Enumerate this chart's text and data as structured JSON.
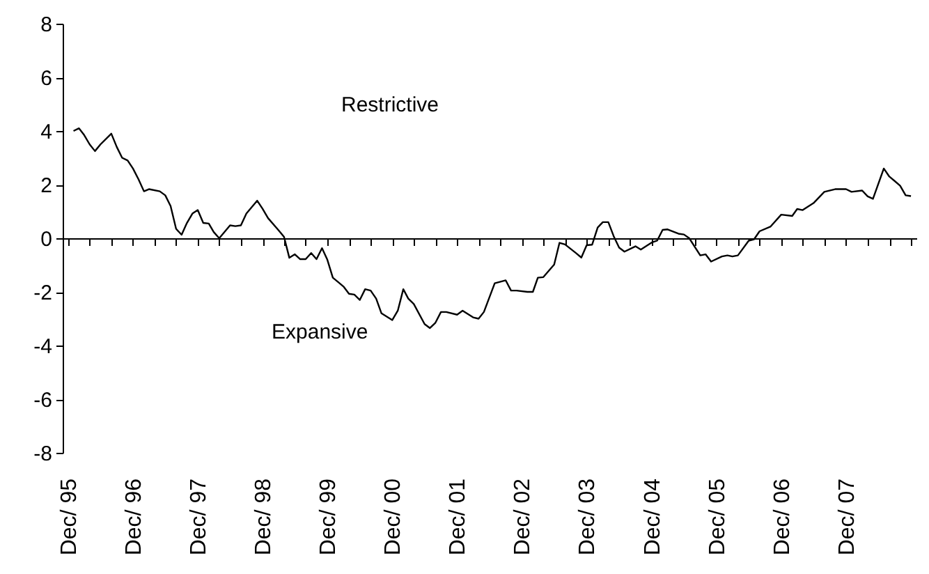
{
  "chart_data": {
    "type": "line",
    "annotations": [
      "Restrictive",
      "Expansive"
    ],
    "x": [
      "1996-01",
      "1996-02",
      "1996-03",
      "1996-04",
      "1996-05",
      "1996-06",
      "1996-08",
      "1996-09",
      "1996-10",
      "1996-11",
      "1996-12",
      "1997-01",
      "1997-02",
      "1997-03",
      "1997-05",
      "1997-06",
      "1997-07",
      "1997-08",
      "1997-09",
      "1997-10",
      "1997-11",
      "1997-12",
      "1998-01",
      "1998-02",
      "1998-03",
      "1998-04",
      "1998-06",
      "1998-07",
      "1998-08",
      "1998-09",
      "1998-11",
      "1998-12",
      "1999-01",
      "1999-03",
      "1999-04",
      "1999-05",
      "1999-06",
      "1999-07",
      "1999-08",
      "1999-09",
      "1999-10",
      "1999-11",
      "1999-12",
      "2000-01",
      "2000-02",
      "2000-03",
      "2000-04",
      "2000-05",
      "2000-06",
      "2000-07",
      "2000-08",
      "2000-09",
      "2000-10",
      "2000-12",
      "2001-01",
      "2001-02",
      "2001-03",
      "2001-04",
      "2001-06",
      "2001-07",
      "2001-08",
      "2001-09",
      "2001-10",
      "2001-12",
      "2002-01",
      "2002-03",
      "2002-04",
      "2002-05",
      "2002-07",
      "2002-09",
      "2002-10",
      "2002-11",
      "2003-01",
      "2003-02",
      "2003-03",
      "2003-04",
      "2003-06",
      "2003-07",
      "2003-08",
      "2003-10",
      "2003-11",
      "2003-12",
      "2004-01",
      "2004-02",
      "2004-03",
      "2004-04",
      "2004-05",
      "2004-06",
      "2004-07",
      "2004-09",
      "2004-10",
      "2004-12",
      "2005-01",
      "2005-02",
      "2005-03",
      "2005-05",
      "2005-06",
      "2005-07",
      "2005-09",
      "2005-10",
      "2005-11",
      "2006-01",
      "2006-02",
      "2006-03",
      "2006-04",
      "2006-06",
      "2006-07",
      "2006-08",
      "2006-10",
      "2006-12",
      "2007-02",
      "2007-03",
      "2007-04",
      "2007-06",
      "2007-08",
      "2007-10",
      "2007-12",
      "2008-01",
      "2008-03",
      "2008-04",
      "2008-05",
      "2008-07",
      "2008-08",
      "2008-09",
      "2008-10",
      "2008-11",
      "2008-12"
    ],
    "series": [
      {
        "color": "#000000",
        "values": [
          4.0,
          4.1,
          3.85,
          3.5,
          3.25,
          3.5,
          3.9,
          3.4,
          3.0,
          2.9,
          2.6,
          2.2,
          1.75,
          1.83,
          1.75,
          1.6,
          1.2,
          0.35,
          0.13,
          0.57,
          0.92,
          1.05,
          0.57,
          0.55,
          0.23,
          0.0,
          0.48,
          0.45,
          0.48,
          0.92,
          1.4,
          1.1,
          0.75,
          0.3,
          0.05,
          -0.73,
          -0.6,
          -0.78,
          -0.78,
          -0.55,
          -0.78,
          -0.37,
          -0.8,
          -1.47,
          -1.64,
          -1.8,
          -2.07,
          -2.1,
          -2.3,
          -1.9,
          -1.95,
          -2.25,
          -2.8,
          -3.05,
          -2.7,
          -1.9,
          -2.25,
          -2.45,
          -3.2,
          -3.35,
          -3.15,
          -2.75,
          -2.75,
          -2.85,
          -2.7,
          -2.95,
          -3.0,
          -2.75,
          -1.68,
          -1.57,
          -1.95,
          -1.95,
          -2.0,
          -2.0,
          -1.47,
          -1.45,
          -0.98,
          -0.17,
          -0.23,
          -0.55,
          -0.72,
          -0.26,
          -0.24,
          0.4,
          0.6,
          0.6,
          0.08,
          -0.35,
          -0.5,
          -0.3,
          -0.42,
          -0.16,
          -0.09,
          0.31,
          0.33,
          0.17,
          0.14,
          0.0,
          -0.64,
          -0.6,
          -0.87,
          -0.68,
          -0.64,
          -0.68,
          -0.64,
          -0.09,
          -0.04,
          0.26,
          0.43,
          0.88,
          0.83,
          1.09,
          1.05,
          1.31,
          1.73,
          1.83,
          1.83,
          1.73,
          1.78,
          1.56,
          1.47,
          2.6,
          2.3,
          2.13,
          1.96,
          1.6,
          1.57
        ]
      }
    ],
    "xlim": [
      "1995-11",
      "2009-01"
    ],
    "xticks": [
      {
        "value": "1995-12",
        "label": "Dec/ 95"
      },
      {
        "value": "1996-04",
        "label": null
      },
      {
        "value": "1996-08",
        "label": null
      },
      {
        "value": "1996-12",
        "label": "Dec/ 96"
      },
      {
        "value": "1997-04",
        "label": null
      },
      {
        "value": "1997-08",
        "label": null
      },
      {
        "value": "1997-12",
        "label": "Dec/ 97"
      },
      {
        "value": "1998-04",
        "label": null
      },
      {
        "value": "1998-08",
        "label": null
      },
      {
        "value": "1998-12",
        "label": "Dec/ 98"
      },
      {
        "value": "1999-04",
        "label": null
      },
      {
        "value": "1999-08",
        "label": null
      },
      {
        "value": "1999-12",
        "label": "Dec/ 99"
      },
      {
        "value": "2000-04",
        "label": null
      },
      {
        "value": "2000-08",
        "label": null
      },
      {
        "value": "2000-12",
        "label": "Dec/ 00"
      },
      {
        "value": "2001-04",
        "label": null
      },
      {
        "value": "2001-08",
        "label": null
      },
      {
        "value": "2001-12",
        "label": "Dec/ 01"
      },
      {
        "value": "2002-04",
        "label": null
      },
      {
        "value": "2002-08",
        "label": null
      },
      {
        "value": "2002-12",
        "label": "Dec/ 02"
      },
      {
        "value": "2003-04",
        "label": null
      },
      {
        "value": "2003-08",
        "label": null
      },
      {
        "value": "2003-12",
        "label": "Dec/ 03"
      },
      {
        "value": "2004-04",
        "label": null
      },
      {
        "value": "2004-08",
        "label": null
      },
      {
        "value": "2004-12",
        "label": "Dec/ 04"
      },
      {
        "value": "2005-04",
        "label": null
      },
      {
        "value": "2005-08",
        "label": null
      },
      {
        "value": "2005-12",
        "label": "Dec/ 05"
      },
      {
        "value": "2006-04",
        "label": null
      },
      {
        "value": "2006-08",
        "label": null
      },
      {
        "value": "2006-12",
        "label": "Dec/ 06"
      },
      {
        "value": "2007-04",
        "label": null
      },
      {
        "value": "2007-08",
        "label": null
      },
      {
        "value": "2007-12",
        "label": "Dec/ 07"
      },
      {
        "value": "2008-04",
        "label": null
      },
      {
        "value": "2008-08",
        "label": null
      },
      {
        "value": "2008-12",
        "label": null
      }
    ],
    "ylim": [
      -8,
      8
    ],
    "yticks": [
      -8,
      -6,
      -4,
      -2,
      0,
      2,
      4,
      6,
      8
    ],
    "marker": "none",
    "line_style": "solid"
  }
}
